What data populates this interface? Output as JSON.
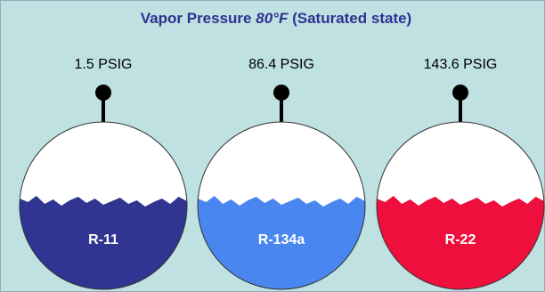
{
  "title": {
    "lead": "Vapor Pressure",
    "temperature": "80°F",
    "tail": "(Saturated state)"
  },
  "vessels": [
    {
      "pressure": "1.5 PSIG",
      "refrigerant": "R-11",
      "color": "#2f3590"
    },
    {
      "pressure": "86.4 PSIG",
      "refrigerant": "R-134a",
      "color": "#4a86f0"
    },
    {
      "pressure": "143.6 PSIG",
      "refrigerant": "R-22",
      "color": "#ee0f3c"
    }
  ]
}
